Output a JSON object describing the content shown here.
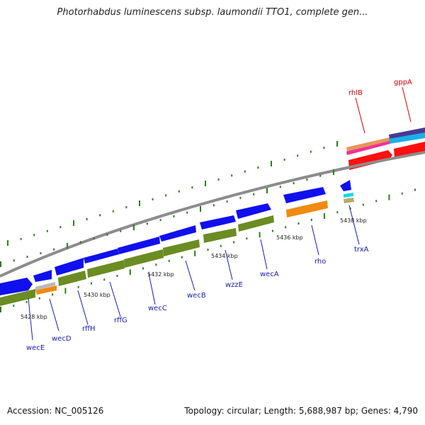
{
  "title": "Photorhabdus luminescens subsp. laumondii TTO1, complete gen...",
  "footer": {
    "accession": "Accession: NC_005126",
    "summary": "Topology: circular; Length: 5,688,987 bp; Genes: 4,790"
  },
  "colors": {
    "cds": "#1010ee",
    "rna": "#6b8c23",
    "backbone": "#8c8c8c",
    "ticks": "#2e7d1e",
    "gene_label_fwd": "#cc0000",
    "gene_label_rev": "#1a1aaa"
  },
  "kbp_labels": [
    "5428 kbp",
    "5430 kbp",
    "5432 kbp",
    "5434 kbp",
    "5436 kbp",
    "5438 kbp"
  ],
  "genes": [
    {
      "name": "wecE",
      "strand": "reverse"
    },
    {
      "name": "wecD",
      "strand": "reverse"
    },
    {
      "name": "rffH",
      "strand": "reverse"
    },
    {
      "name": "rffG",
      "strand": "reverse"
    },
    {
      "name": "wecC",
      "strand": "reverse"
    },
    {
      "name": "wecB",
      "strand": "reverse"
    },
    {
      "name": "wzzE",
      "strand": "reverse"
    },
    {
      "name": "wecA",
      "strand": "reverse"
    },
    {
      "name": "rho",
      "strand": "reverse"
    },
    {
      "name": "trxA",
      "strand": "reverse"
    },
    {
      "name": "rhlB",
      "strand": "forward"
    },
    {
      "name": "gppA",
      "strand": "forward"
    }
  ]
}
